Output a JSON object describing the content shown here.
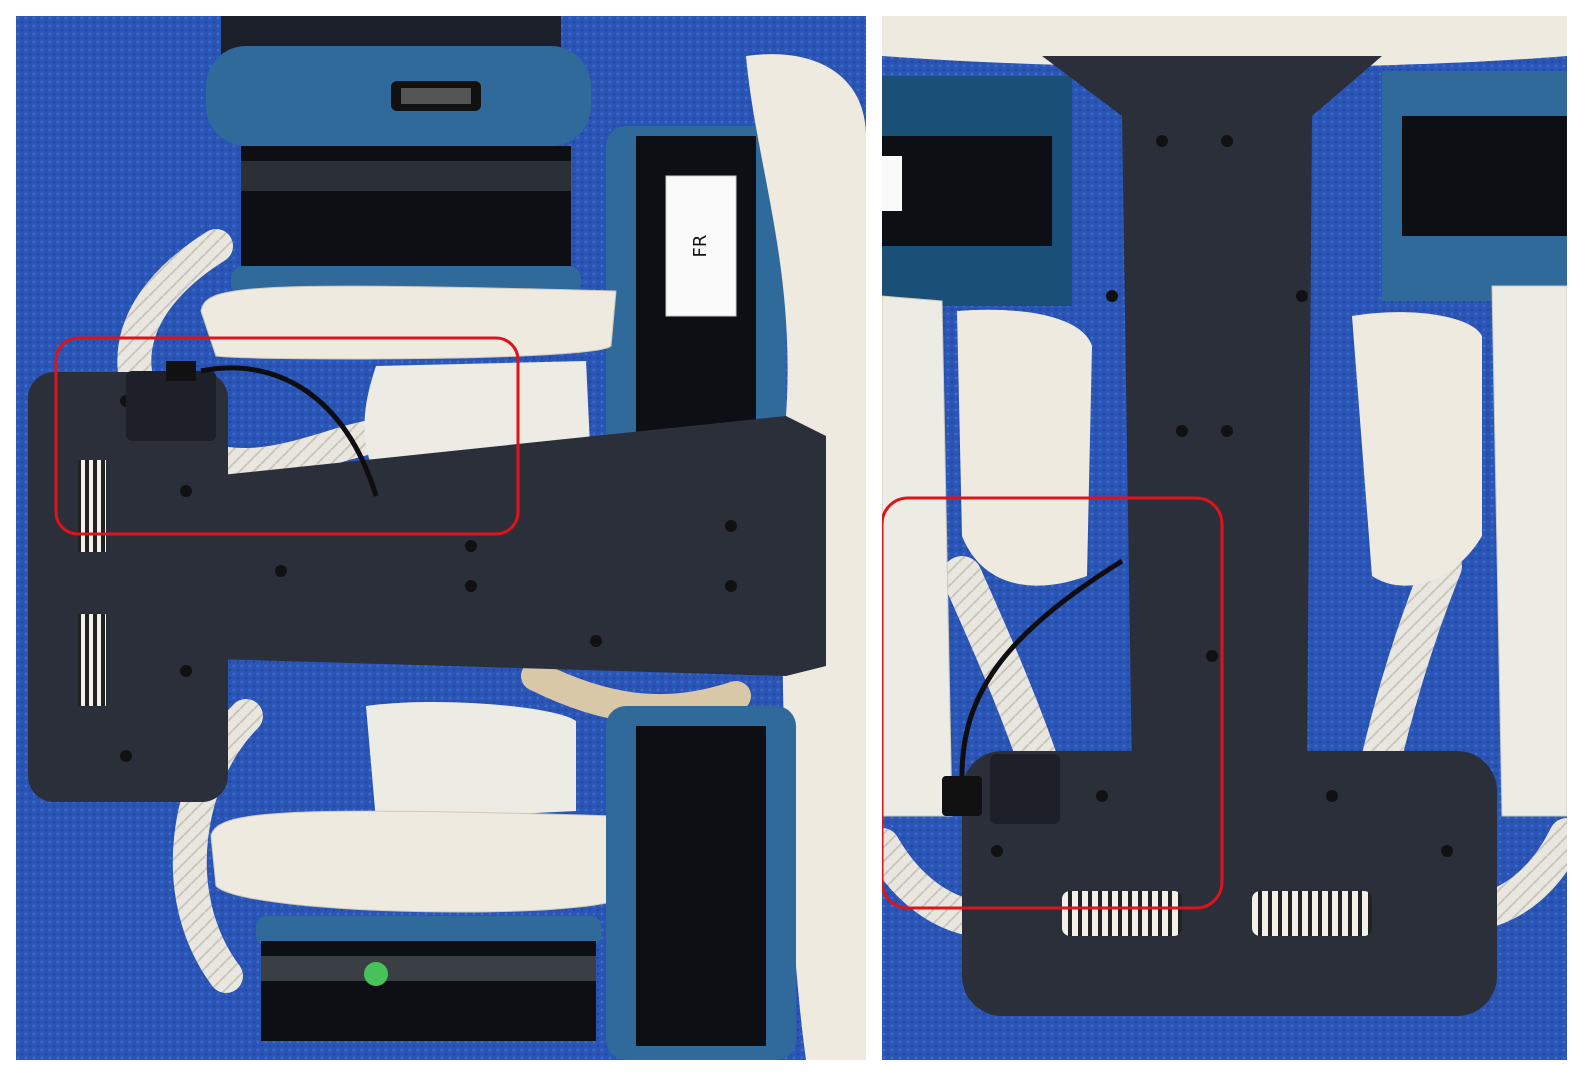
{
  "photos": [
    {
      "view": "side",
      "sticker_text": "FR",
      "colors": {
        "carpet": "#2a55b5",
        "bracket": "#2b2f3a",
        "motor_ring": "#2f6a9a",
        "shell": "#eeeae0",
        "highlight": "#e0121a"
      }
    },
    {
      "view": "bottom",
      "colors": {
        "carpet": "#2a55b5",
        "bracket": "#2b2f3a",
        "motor_ring": "#2f6a9a",
        "shell": "#eeeae0",
        "highlight": "#e0121a"
      }
    }
  ]
}
